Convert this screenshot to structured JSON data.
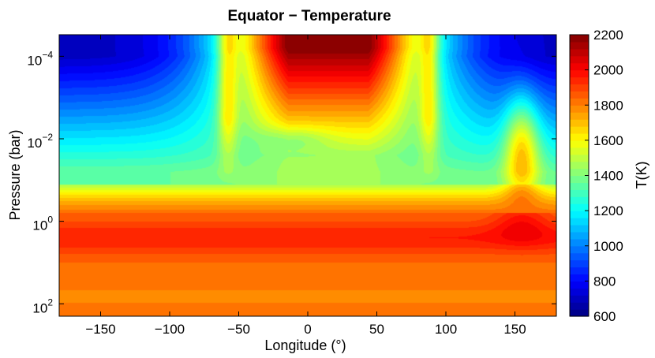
{
  "chart_data": {
    "type": "heatmap",
    "title": "Equator − Temperature",
    "xlabel": "Longitude (°)",
    "ylabel": "Pressure (bar)",
    "colorbar_label": "T(K)",
    "x_range": [
      -180,
      180
    ],
    "x_ticks": [
      -150,
      -100,
      -50,
      0,
      50,
      100,
      150
    ],
    "x_tick_labels": [
      "−150",
      "−100",
      "−50",
      "0",
      "50",
      "100",
      "150"
    ],
    "y_scale": "log",
    "y_inverted": true,
    "y_range_bar": [
      3e-05,
      200
    ],
    "y_ticks": [
      0.0001,
      0.01,
      1,
      100
    ],
    "y_tick_labels": [
      {
        "base": "10",
        "exp": "−4"
      },
      {
        "base": "10",
        "exp": "−2"
      },
      {
        "base": "10",
        "exp": "0"
      },
      {
        "base": "10",
        "exp": "2"
      }
    ],
    "colorbar_range": [
      600,
      2200
    ],
    "colorbar_ticks": [
      600,
      800,
      1000,
      1200,
      1400,
      1600,
      1800,
      2000,
      2200
    ],
    "colormap": "jet",
    "colormap_stops": [
      "#00008f",
      "#0000ff",
      "#00ffff",
      "#ffff00",
      "#ff0000",
      "#800000"
    ],
    "contour_levels": 40,
    "temperature_features_K": {
      "hot_dayside_upper_atmosphere_max": 2200,
      "cold_nightside_upper_atmosphere_min": 650,
      "deep_atmosphere_band_near_1bar": 1950,
      "deepest_layer_100bar": 1800
    }
  }
}
